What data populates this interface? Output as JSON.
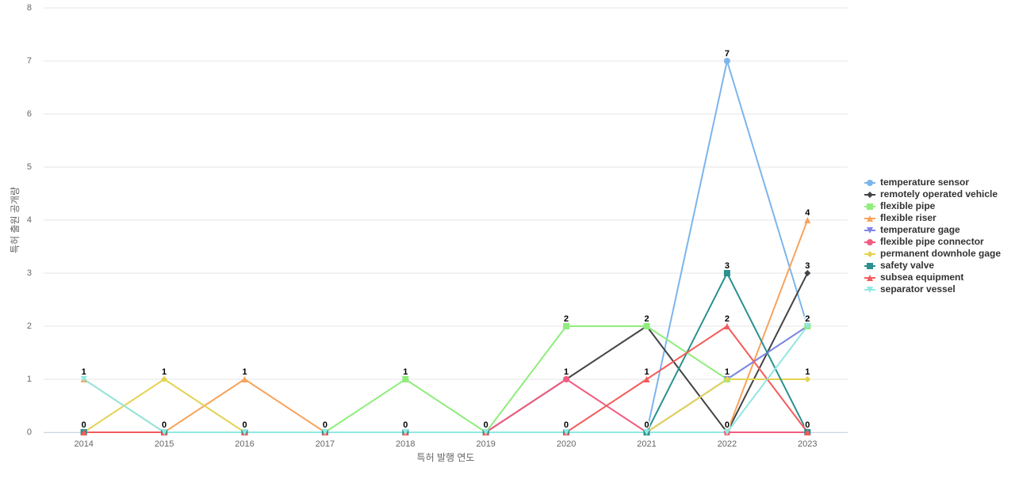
{
  "chart_data": {
    "type": "line",
    "x_label": "특허 발행 연도",
    "y_label": "특허 출원 공개량",
    "categories": [
      "2014",
      "2015",
      "2016",
      "2017",
      "2018",
      "2019",
      "2020",
      "2021",
      "2022",
      "2023"
    ],
    "ylim": [
      0,
      8
    ],
    "yticks": [
      0,
      1,
      2,
      3,
      4,
      5,
      6,
      7,
      8
    ],
    "grid": true,
    "legend": "right",
    "series": [
      {
        "name": "temperature sensor",
        "color": "#7cb5ec",
        "marker": "circle",
        "values": [
          0,
          0,
          0,
          0,
          0,
          0,
          0,
          0,
          7,
          2
        ]
      },
      {
        "name": "remotely operated vehicle",
        "color": "#434348",
        "marker": "diamond",
        "values": [
          0,
          0,
          0,
          0,
          0,
          0,
          1,
          2,
          0,
          3
        ]
      },
      {
        "name": "flexible pipe",
        "color": "#90ed7d",
        "marker": "square",
        "values": [
          0,
          0,
          0,
          0,
          1,
          0,
          2,
          2,
          1,
          2
        ]
      },
      {
        "name": "flexible riser",
        "color": "#f7a35c",
        "marker": "triangle",
        "values": [
          1,
          0,
          1,
          0,
          0,
          0,
          0,
          0,
          0,
          4
        ]
      },
      {
        "name": "temperature gage",
        "color": "#8085e9",
        "marker": "triangle-down",
        "values": [
          0,
          0,
          0,
          0,
          0,
          0,
          0,
          0,
          1,
          2
        ]
      },
      {
        "name": "flexible pipe connector",
        "color": "#f15c80",
        "marker": "circle",
        "values": [
          0,
          0,
          0,
          0,
          0,
          0,
          1,
          0,
          0,
          0
        ]
      },
      {
        "name": "permanent downhole gage",
        "color": "#e4d354",
        "marker": "diamond",
        "values": [
          0,
          1,
          0,
          0,
          0,
          0,
          0,
          0,
          1,
          1
        ]
      },
      {
        "name": "safety valve",
        "color": "#2b908f",
        "marker": "square",
        "values": [
          0,
          0,
          0,
          0,
          0,
          0,
          0,
          0,
          3,
          0
        ]
      },
      {
        "name": "subsea equipment",
        "color": "#f45b5b",
        "marker": "triangle",
        "values": [
          0,
          0,
          0,
          0,
          0,
          0,
          0,
          1,
          2,
          0
        ]
      },
      {
        "name": "separator vessel",
        "color": "#91e8e1",
        "marker": "triangle-down",
        "values": [
          1,
          0,
          0,
          0,
          0,
          0,
          0,
          0,
          0,
          2
        ]
      }
    ]
  }
}
